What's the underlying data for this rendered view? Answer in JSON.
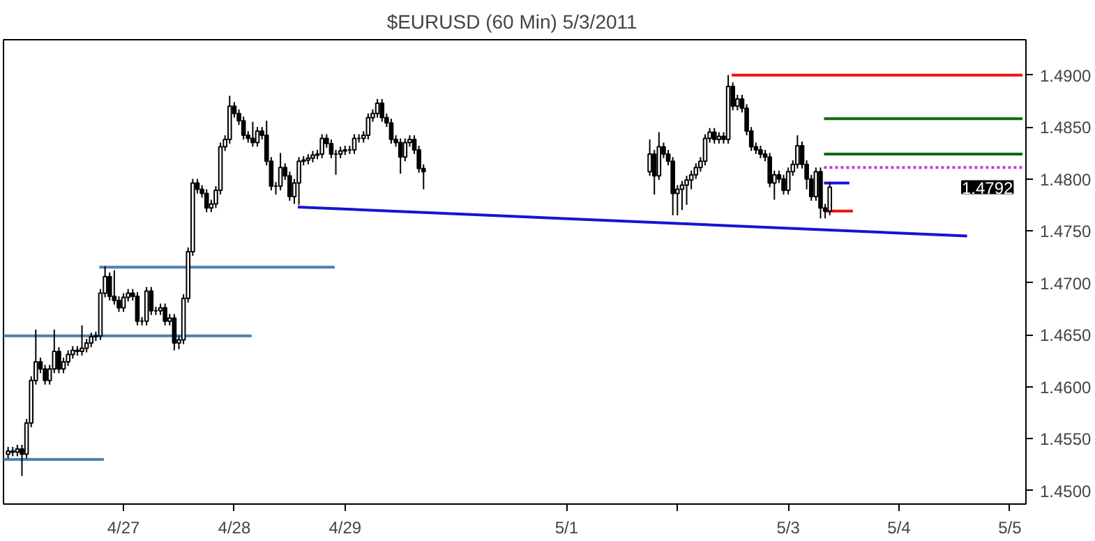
{
  "chart_data": {
    "type": "candlestick",
    "title": "$EURUSD (60 Min)  5/3/2011",
    "x": [
      "2011-04-25T23:00",
      "2011-04-26T00:00",
      "2011-04-26T01:00",
      "2011-04-26T02:00",
      "2011-04-26T03:00",
      "2011-04-26T04:00",
      "2011-04-26T05:00",
      "2011-04-26T06:00",
      "2011-04-26T07:00",
      "2011-04-26T08:00",
      "2011-04-26T09:00",
      "2011-04-26T10:00",
      "2011-04-26T11:00",
      "2011-04-26T12:00",
      "2011-04-26T13:00",
      "2011-04-26T14:00",
      "2011-04-26T15:00",
      "2011-04-26T16:00",
      "2011-04-26T17:00",
      "2011-04-26T18:00",
      "2011-04-26T19:00",
      "2011-04-26T20:00",
      "2011-04-26T21:00",
      "2011-04-26T22:00",
      "2011-04-26T23:00",
      "2011-04-27T00:00",
      "2011-04-27T01:00",
      "2011-04-27T02:00",
      "2011-04-27T03:00",
      "2011-04-27T04:00",
      "2011-04-27T05:00",
      "2011-04-27T06:00",
      "2011-04-27T07:00",
      "2011-04-27T08:00",
      "2011-04-27T09:00",
      "2011-04-27T10:00",
      "2011-04-27T11:00",
      "2011-04-27T12:00",
      "2011-04-27T13:00",
      "2011-04-27T14:00",
      "2011-04-27T15:00",
      "2011-04-27T16:00",
      "2011-04-27T17:00",
      "2011-04-27T18:00",
      "2011-04-27T19:00",
      "2011-04-27T20:00",
      "2011-04-27T21:00",
      "2011-04-27T22:00",
      "2011-04-27T23:00",
      "2011-04-28T00:00",
      "2011-04-28T01:00",
      "2011-04-28T02:00",
      "2011-04-28T03:00",
      "2011-04-28T04:00",
      "2011-04-28T05:00",
      "2011-04-28T06:00",
      "2011-04-28T07:00",
      "2011-04-28T08:00",
      "2011-04-28T09:00",
      "2011-04-28T10:00",
      "2011-04-28T11:00",
      "2011-04-28T12:00",
      "2011-04-28T13:00",
      "2011-04-28T14:00",
      "2011-04-28T15:00",
      "2011-04-28T16:00",
      "2011-04-28T17:00",
      "2011-04-28T18:00",
      "2011-04-28T19:00",
      "2011-04-28T20:00",
      "2011-04-28T21:00",
      "2011-04-28T22:00",
      "2011-04-28T23:00",
      "2011-04-29T00:00",
      "2011-04-29T01:00",
      "2011-04-29T02:00",
      "2011-04-29T03:00",
      "2011-04-29T04:00",
      "2011-04-29T05:00",
      "2011-04-29T06:00",
      "2011-04-29T07:00",
      "2011-04-29T08:00",
      "2011-04-29T09:00",
      "2011-04-29T10:00",
      "2011-04-29T11:00",
      "2011-04-29T12:00",
      "2011-04-29T13:00",
      "2011-04-29T14:00",
      "2011-04-29T15:00",
      "2011-04-29T16:00",
      "2011-04-29T17:00",
      "2011-05-01T18:00",
      "2011-05-01T19:00",
      "2011-05-01T20:00",
      "2011-05-01T21:00",
      "2011-05-01T22:00",
      "2011-05-01T23:00",
      "2011-05-02T00:00",
      "2011-05-02T01:00",
      "2011-05-02T02:00",
      "2011-05-02T03:00",
      "2011-05-02T04:00",
      "2011-05-02T05:00",
      "2011-05-02T06:00",
      "2011-05-02T07:00",
      "2011-05-02T08:00",
      "2011-05-02T09:00",
      "2011-05-02T10:00",
      "2011-05-02T11:00",
      "2011-05-02T12:00",
      "2011-05-02T13:00",
      "2011-05-02T14:00",
      "2011-05-02T15:00",
      "2011-05-02T16:00",
      "2011-05-02T17:00",
      "2011-05-02T18:00",
      "2011-05-02T19:00",
      "2011-05-02T20:00",
      "2011-05-02T21:00",
      "2011-05-02T22:00",
      "2011-05-02T23:00",
      "2011-05-03T00:00",
      "2011-05-03T01:00",
      "2011-05-03T02:00",
      "2011-05-03T03:00",
      "2011-05-03T04:00",
      "2011-05-03T05:00",
      "2011-05-03T06:00",
      "2011-05-03T07:00",
      "2011-05-03T08:00",
      "2011-05-03T09:00"
    ],
    "ohlc": [
      [
        1.4535,
        1.4542,
        1.4531,
        1.4538
      ],
      [
        1.4538,
        1.4542,
        1.4533,
        1.4537
      ],
      [
        1.4537,
        1.4544,
        1.4533,
        1.454
      ],
      [
        1.454,
        1.4544,
        1.4514,
        1.4535
      ],
      [
        1.4535,
        1.4569,
        1.4531,
        1.4565
      ],
      [
        1.4565,
        1.461,
        1.4561,
        1.4606
      ],
      [
        1.4606,
        1.4655,
        1.4602,
        1.4624
      ],
      [
        1.4624,
        1.4628,
        1.4613,
        1.4617
      ],
      [
        1.4617,
        1.4621,
        1.4602,
        1.4606
      ],
      [
        1.4606,
        1.4621,
        1.4602,
        1.4617
      ],
      [
        1.4617,
        1.4655,
        1.4613,
        1.4634
      ],
      [
        1.4634,
        1.4638,
        1.4613,
        1.4617
      ],
      [
        1.4617,
        1.4628,
        1.4613,
        1.4624
      ],
      [
        1.4624,
        1.4635,
        1.462,
        1.4631
      ],
      [
        1.4631,
        1.4639,
        1.4627,
        1.4635
      ],
      [
        1.4635,
        1.4639,
        1.463,
        1.4634
      ],
      [
        1.4634,
        1.4659,
        1.463,
        1.4637
      ],
      [
        1.4637,
        1.4646,
        1.4633,
        1.4642
      ],
      [
        1.4642,
        1.4652,
        1.4638,
        1.4648
      ],
      [
        1.4648,
        1.4653,
        1.4644,
        1.4649
      ],
      [
        1.4649,
        1.4694,
        1.4645,
        1.469
      ],
      [
        1.469,
        1.4716,
        1.4686,
        1.4706
      ],
      [
        1.4706,
        1.471,
        1.4683,
        1.4687
      ],
      [
        1.4687,
        1.4712,
        1.4679,
        1.4683
      ],
      [
        1.4683,
        1.4687,
        1.4672,
        1.4676
      ],
      [
        1.4676,
        1.469,
        1.4672,
        1.4686
      ],
      [
        1.4686,
        1.4694,
        1.4682,
        1.469
      ],
      [
        1.469,
        1.4694,
        1.4683,
        1.4687
      ],
      [
        1.4687,
        1.4691,
        1.4659,
        1.4663
      ],
      [
        1.4663,
        1.4667,
        1.4659,
        1.4663
      ],
      [
        1.4663,
        1.4696,
        1.4659,
        1.4692
      ],
      [
        1.4692,
        1.4696,
        1.4669,
        1.4673
      ],
      [
        1.4673,
        1.4677,
        1.4669,
        1.4673
      ],
      [
        1.4673,
        1.468,
        1.4669,
        1.4676
      ],
      [
        1.4676,
        1.468,
        1.4659,
        1.4663
      ],
      [
        1.4663,
        1.467,
        1.4659,
        1.4666
      ],
      [
        1.4666,
        1.467,
        1.4635,
        1.4642
      ],
      [
        1.4642,
        1.4649,
        1.4636,
        1.4645
      ],
      [
        1.4645,
        1.4689,
        1.4641,
        1.4685
      ],
      [
        1.4685,
        1.4734,
        1.4681,
        1.473
      ],
      [
        1.473,
        1.48,
        1.4726,
        1.4796
      ],
      [
        1.4796,
        1.48,
        1.4786,
        1.479
      ],
      [
        1.479,
        1.4794,
        1.4782,
        1.4786
      ],
      [
        1.4786,
        1.479,
        1.4768,
        1.4772
      ],
      [
        1.4772,
        1.478,
        1.4768,
        1.4776
      ],
      [
        1.4776,
        1.4793,
        1.4772,
        1.4789
      ],
      [
        1.4789,
        1.4835,
        1.4785,
        1.4831
      ],
      [
        1.4831,
        1.4842,
        1.4827,
        1.4838
      ],
      [
        1.4838,
        1.488,
        1.4834,
        1.487
      ],
      [
        1.487,
        1.4874,
        1.4859,
        1.4863
      ],
      [
        1.4863,
        1.4867,
        1.4852,
        1.4856
      ],
      [
        1.4856,
        1.486,
        1.4838,
        1.4842
      ],
      [
        1.4842,
        1.4846,
        1.4835,
        1.4839
      ],
      [
        1.4839,
        1.4855,
        1.4831,
        1.4835
      ],
      [
        1.4835,
        1.485,
        1.4831,
        1.4846
      ],
      [
        1.4846,
        1.485,
        1.4838,
        1.4842
      ],
      [
        1.4842,
        1.4856,
        1.4813,
        1.4817
      ],
      [
        1.4817,
        1.4821,
        1.4789,
        1.4793
      ],
      [
        1.4793,
        1.4797,
        1.4785,
        1.4793
      ],
      [
        1.4793,
        1.4825,
        1.4789,
        1.4811
      ],
      [
        1.4811,
        1.4815,
        1.4799,
        1.4803
      ],
      [
        1.4803,
        1.4807,
        1.4779,
        1.4783
      ],
      [
        1.4783,
        1.48,
        1.4776,
        1.4796
      ],
      [
        1.4796,
        1.4821,
        1.4775,
        1.4817
      ],
      [
        1.4817,
        1.4822,
        1.4813,
        1.4818
      ],
      [
        1.4818,
        1.4824,
        1.4814,
        1.482
      ],
      [
        1.482,
        1.4827,
        1.4816,
        1.4823
      ],
      [
        1.4823,
        1.4828,
        1.4819,
        1.4824
      ],
      [
        1.4824,
        1.4843,
        1.482,
        1.4839
      ],
      [
        1.4839,
        1.4843,
        1.483,
        1.4834
      ],
      [
        1.4834,
        1.4838,
        1.482,
        1.4824
      ],
      [
        1.4824,
        1.4828,
        1.4804,
        1.4824
      ],
      [
        1.4824,
        1.4831,
        1.482,
        1.4827
      ],
      [
        1.4827,
        1.4832,
        1.4823,
        1.4828
      ],
      [
        1.4828,
        1.4832,
        1.4824,
        1.4828
      ],
      [
        1.4828,
        1.4843,
        1.4824,
        1.4839
      ],
      [
        1.4839,
        1.4843,
        1.4835,
        1.4839
      ],
      [
        1.4839,
        1.4846,
        1.4835,
        1.4842
      ],
      [
        1.4842,
        1.4863,
        1.4838,
        1.4859
      ],
      [
        1.4859,
        1.4867,
        1.4855,
        1.4863
      ],
      [
        1.4863,
        1.4877,
        1.4859,
        1.4873
      ],
      [
        1.4873,
        1.4877,
        1.4855,
        1.4859
      ],
      [
        1.4859,
        1.4863,
        1.485,
        1.4854
      ],
      [
        1.4854,
        1.4858,
        1.4834,
        1.4838
      ],
      [
        1.4838,
        1.4842,
        1.4831,
        1.4835
      ],
      [
        1.4835,
        1.4839,
        1.4805,
        1.4821
      ],
      [
        1.4821,
        1.4839,
        1.4817,
        1.4835
      ],
      [
        1.4835,
        1.4842,
        1.4831,
        1.4838
      ],
      [
        1.4838,
        1.4842,
        1.4824,
        1.4828
      ],
      [
        1.4828,
        1.4832,
        1.4806,
        1.481
      ],
      [
        1.481,
        1.4814,
        1.479,
        1.4807
      ],
      [
        1.4807,
        1.4838,
        1.4803,
        1.4824
      ],
      [
        1.4824,
        1.4828,
        1.4785,
        1.4803
      ],
      [
        1.4803,
        1.4845,
        1.4799,
        1.4831
      ],
      [
        1.4831,
        1.4835,
        1.482,
        1.4824
      ],
      [
        1.4824,
        1.4828,
        1.4813,
        1.4817
      ],
      [
        1.4817,
        1.4821,
        1.4765,
        1.4786
      ],
      [
        1.4786,
        1.4794,
        1.4765,
        1.479
      ],
      [
        1.479,
        1.4798,
        1.477,
        1.4794
      ],
      [
        1.4794,
        1.4803,
        1.4775,
        1.4799
      ],
      [
        1.4799,
        1.4808,
        1.479,
        1.4804
      ],
      [
        1.4804,
        1.4815,
        1.48,
        1.4811
      ],
      [
        1.4811,
        1.4821,
        1.4807,
        1.4817
      ],
      [
        1.4817,
        1.4843,
        1.4813,
        1.4839
      ],
      [
        1.4839,
        1.4849,
        1.4835,
        1.4845
      ],
      [
        1.4845,
        1.4849,
        1.4834,
        1.4838
      ],
      [
        1.4838,
        1.4845,
        1.4834,
        1.4841
      ],
      [
        1.4841,
        1.4845,
        1.4834,
        1.4838
      ],
      [
        1.4838,
        1.49,
        1.4834,
        1.4889
      ],
      [
        1.4889,
        1.4893,
        1.4866,
        1.487
      ],
      [
        1.487,
        1.4881,
        1.4866,
        1.4877
      ],
      [
        1.4877,
        1.4881,
        1.4864,
        1.4868
      ],
      [
        1.4868,
        1.4872,
        1.4842,
        1.4846
      ],
      [
        1.4846,
        1.485,
        1.4827,
        1.4831
      ],
      [
        1.4831,
        1.4835,
        1.4824,
        1.4828
      ],
      [
        1.4828,
        1.4832,
        1.482,
        1.4824
      ],
      [
        1.4824,
        1.4828,
        1.4817,
        1.4821
      ],
      [
        1.4821,
        1.4825,
        1.4792,
        1.4796
      ],
      [
        1.4796,
        1.4808,
        1.478,
        1.4804
      ],
      [
        1.4804,
        1.4808,
        1.4796,
        1.48
      ],
      [
        1.48,
        1.4804,
        1.4785,
        1.4789
      ],
      [
        1.4789,
        1.4811,
        1.4785,
        1.4807
      ],
      [
        1.4807,
        1.4818,
        1.4803,
        1.4814
      ],
      [
        1.4814,
        1.4842,
        1.481,
        1.4832
      ],
      [
        1.4832,
        1.4836,
        1.481,
        1.4814
      ],
      [
        1.4814,
        1.4818,
        1.479,
        1.48
      ],
      [
        1.48,
        1.4804,
        1.4779,
        1.4783
      ],
      [
        1.4783,
        1.4811,
        1.4779,
        1.4807
      ],
      [
        1.4807,
        1.4811,
        1.4762,
        1.4772
      ],
      [
        1.4772,
        1.4776,
        1.4762,
        1.4769
      ],
      [
        1.4769,
        1.4796,
        1.4765,
        1.4792
      ]
    ],
    "series": [
      {
        "type": "line",
        "color": "#4f81ad",
        "x": [
          "2011-04-25T22:00",
          "2011-04-28T03:45"
        ],
        "values": [
          1.4649,
          1.4649
        ]
      },
      {
        "type": "line",
        "color": "#4f81ad",
        "x": [
          "2011-04-26T18:45",
          "2011-04-28T21:45"
        ],
        "values": [
          1.4715,
          1.4715
        ]
      },
      {
        "type": "line",
        "color": "#4f81ad",
        "x": [
          "2011-04-25T22:00",
          "2011-04-26T19:45"
        ],
        "values": [
          1.453,
          1.453
        ]
      },
      {
        "type": "line",
        "color": "#1515d0",
        "x": [
          "2011-04-28T13:45",
          "2011-05-04T14:45"
        ],
        "values": [
          1.4773,
          1.4745
        ]
      },
      {
        "type": "line",
        "color": "#ee1111",
        "x": [
          "2011-05-02T11:45",
          "2011-05-05T02:45"
        ],
        "values": [
          1.49,
          1.49
        ]
      },
      {
        "type": "line",
        "color": "#0b6b0b",
        "x": [
          "2011-05-03T07:45",
          "2011-05-05T02:45"
        ],
        "values": [
          1.4858,
          1.4858
        ]
      },
      {
        "type": "line",
        "color": "#0b6b0b",
        "x": [
          "2011-05-03T07:45",
          "2011-05-05T02:45"
        ],
        "values": [
          1.4824,
          1.4824
        ]
      },
      {
        "type": "line",
        "color": "#bb44cc",
        "line_style": "dotted",
        "x": [
          "2011-05-03T07:45",
          "2011-05-05T02:45"
        ],
        "values": [
          1.4811,
          1.4811
        ]
      },
      {
        "type": "line",
        "color": "#1515d0",
        "x": [
          "2011-05-03T07:45",
          "2011-05-03T13:15"
        ],
        "values": [
          1.4796,
          1.4796
        ]
      },
      {
        "type": "line",
        "color": "#ee1111",
        "x": [
          "2011-05-03T07:45",
          "2011-05-03T14:00"
        ],
        "values": [
          1.4769,
          1.4769
        ]
      }
    ],
    "annotations": [
      "1.4792"
    ],
    "xlim": [
      "2011-04-25T22:00",
      "2011-05-05T03:30"
    ],
    "xticks": [
      {
        "value": "2011-04-27",
        "label": "4/27"
      },
      {
        "value": "2011-04-28",
        "label": "4/28"
      },
      {
        "value": "2011-04-29",
        "label": "4/29"
      },
      {
        "value": "2011-05-01",
        "label": "5/1"
      },
      {
        "value": "2011-05-02",
        "label": null
      },
      {
        "value": "2011-05-03",
        "label": "5/3"
      },
      {
        "value": "2011-05-04",
        "label": "5/4"
      },
      {
        "value": "2011-05-05",
        "label": "5/5"
      }
    ],
    "ylim": [
      1.4487,
      1.4934
    ],
    "yticks": [
      {
        "value": 1.45,
        "label": "1.4500"
      },
      {
        "value": 1.455,
        "label": "1.4550"
      },
      {
        "value": 1.46,
        "label": "1.4600"
      },
      {
        "value": 1.465,
        "label": "1.4650"
      },
      {
        "value": 1.47,
        "label": "1.4700"
      },
      {
        "value": 1.475,
        "label": "1.4750"
      },
      {
        "value": 1.48,
        "label": "1.4800"
      },
      {
        "value": 1.485,
        "label": "1.4850"
      },
      {
        "value": 1.49,
        "label": "1.4900"
      }
    ]
  }
}
